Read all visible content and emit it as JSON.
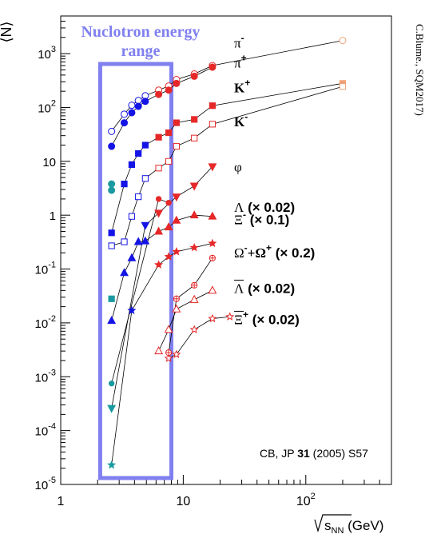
{
  "chart_data": {
    "type": "scatter",
    "x_scale": "log",
    "y_scale": "log",
    "xlim": [
      1,
      500
    ],
    "ylim": [
      1e-05,
      5000
    ],
    "grid": false,
    "ylabel": "⟨N⟩",
    "xlabel_symbol": "s",
    "xlabel_subscript": "NN",
    "xlabel_unit": "(GeV)",
    "x_tick_labels": [
      {
        "x": 1,
        "label": "1"
      },
      {
        "x": 10,
        "label": "10"
      },
      {
        "x": 100,
        "base": "10",
        "exp": "2"
      }
    ],
    "y_tick_labels": [
      {
        "y": 1e-05,
        "base": "10",
        "exp": "-5"
      },
      {
        "y": 0.0001,
        "base": "10",
        "exp": "-4"
      },
      {
        "y": 0.001,
        "base": "10",
        "exp": "-3"
      },
      {
        "y": 0.01,
        "base": "10",
        "exp": "-2"
      },
      {
        "y": 0.1,
        "base": "10",
        "exp": "-1"
      },
      {
        "y": 1,
        "label": "1"
      },
      {
        "y": 10,
        "label": "10"
      },
      {
        "y": 100,
        "base": "10",
        "exp": "2"
      },
      {
        "y": 1000,
        "base": "10",
        "exp": "3"
      }
    ],
    "band": {
      "x_from": 2.1,
      "x_to": 8.0,
      "label_line1": "Nuclotron energy",
      "label_line2": "range",
      "color": "#8080f0"
    },
    "credit_side": "C.Blume., SQM2017)",
    "credit_bottom": {
      "pre": "CB, JP ",
      "bold": "31",
      "post": " (2005) S57"
    },
    "series": [
      {
        "name": "π-",
        "marker": "circle",
        "filled": false,
        "line": true,
        "points": [
          {
            "x": 2.6,
            "y": 36,
            "c": "#1414e6"
          },
          {
            "x": 3.3,
            "y": 75,
            "c": "#1414e6"
          },
          {
            "x": 3.8,
            "y": 110,
            "c": "#1414e6"
          },
          {
            "x": 4.3,
            "y": 135,
            "c": "#1414e6"
          },
          {
            "x": 4.9,
            "y": 165,
            "c": "#1414e6"
          },
          {
            "x": 6.3,
            "y": 210,
            "c": "#e62828"
          },
          {
            "x": 7.6,
            "y": 250,
            "c": "#e62828"
          },
          {
            "x": 8.8,
            "y": 330,
            "c": "#e62828"
          },
          {
            "x": 12.3,
            "y": 420,
            "c": "#e62828"
          },
          {
            "x": 17.3,
            "y": 600,
            "c": "#e62828"
          },
          {
            "x": 200,
            "y": 1750,
            "c": "#f0a078"
          }
        ]
      },
      {
        "name": "π+",
        "marker": "circle",
        "filled": true,
        "line": true,
        "points": [
          {
            "x": 2.6,
            "y": 19,
            "c": "#1414e6"
          },
          {
            "x": 3.3,
            "y": 52,
            "c": "#1414e6"
          },
          {
            "x": 3.8,
            "y": 80,
            "c": "#1414e6"
          },
          {
            "x": 4.3,
            "y": 105,
            "c": "#1414e6"
          },
          {
            "x": 4.9,
            "y": 130,
            "c": "#1414e6"
          },
          {
            "x": 6.3,
            "y": 175,
            "c": "#e62828"
          },
          {
            "x": 7.6,
            "y": 210,
            "c": "#e62828"
          },
          {
            "x": 8.8,
            "y": 280,
            "c": "#e62828"
          },
          {
            "x": 12.3,
            "y": 380,
            "c": "#e62828"
          },
          {
            "x": 17.3,
            "y": 560,
            "c": "#e62828"
          }
        ]
      },
      {
        "name": "K+",
        "marker": "square",
        "filled": true,
        "line": true,
        "points": [
          {
            "x": 2.6,
            "y": 0.47,
            "c": "#1414e6"
          },
          {
            "x": 3.3,
            "y": 3.8,
            "c": "#1414e6"
          },
          {
            "x": 3.8,
            "y": 8.7,
            "c": "#1414e6"
          },
          {
            "x": 4.3,
            "y": 14,
            "c": "#1414e6"
          },
          {
            "x": 4.9,
            "y": 20,
            "c": "#1414e6"
          },
          {
            "x": 6.3,
            "y": 28,
            "c": "#e62828"
          },
          {
            "x": 7.6,
            "y": 34,
            "c": "#e62828"
          },
          {
            "x": 8.8,
            "y": 52,
            "c": "#e62828"
          },
          {
            "x": 12.3,
            "y": 60,
            "c": "#e62828"
          },
          {
            "x": 17.3,
            "y": 108,
            "c": "#e62828"
          },
          {
            "x": 200,
            "y": 280,
            "c": "#f0a078"
          }
        ]
      },
      {
        "name": "K-",
        "marker": "square",
        "filled": false,
        "line": true,
        "points": [
          {
            "x": 2.6,
            "y": 0.27,
            "c": "#1414e6"
          },
          {
            "x": 3.3,
            "y": 0.32,
            "c": "#1414e6"
          },
          {
            "x": 3.8,
            "y": 0.95,
            "c": "#1414e6"
          },
          {
            "x": 4.3,
            "y": 2.2,
            "c": "#1414e6"
          },
          {
            "x": 4.9,
            "y": 4.8,
            "c": "#1414e6"
          },
          {
            "x": 6.3,
            "y": 7.5,
            "c": "#e62828"
          },
          {
            "x": 7.6,
            "y": 10,
            "c": "#e62828"
          },
          {
            "x": 8.8,
            "y": 19,
            "c": "#e62828"
          },
          {
            "x": 12.3,
            "y": 27,
            "c": "#e62828"
          },
          {
            "x": 17.3,
            "y": 49,
            "c": "#e62828"
          },
          {
            "x": 200,
            "y": 245,
            "c": "#f0a078"
          }
        ]
      },
      {
        "name": "φ",
        "marker": "triangle-down",
        "filled": true,
        "line": true,
        "points": [
          {
            "x": 2.6,
            "y": 0.00026,
            "c": "#1a9aa0"
          },
          {
            "x": 4.9,
            "y": 0.65,
            "c": "#1414e6"
          },
          {
            "x": 6.3,
            "y": 1.1,
            "c": "#e62828"
          },
          {
            "x": 8.8,
            "y": 2.2,
            "c": "#e62828"
          },
          {
            "x": 12.3,
            "y": 3.5,
            "c": "#e62828"
          },
          {
            "x": 17.3,
            "y": 8.0,
            "c": "#e62828"
          }
        ]
      },
      {
        "name": "Λ (× 0.02)",
        "marker": "triangle-up",
        "filled": true,
        "line": true,
        "points": [
          {
            "x": 2.6,
            "y": 0.011,
            "c": "#1414e6"
          },
          {
            "x": 3.3,
            "y": 0.085,
            "c": "#1414e6"
          },
          {
            "x": 3.8,
            "y": 0.16,
            "c": "#1414e6"
          },
          {
            "x": 4.3,
            "y": 0.32,
            "c": "#1414e6"
          },
          {
            "x": 4.9,
            "y": 0.33,
            "c": "#1414e6"
          },
          {
            "x": 6.3,
            "y": 0.5,
            "c": "#e62828"
          },
          {
            "x": 7.6,
            "y": 0.6,
            "c": "#e62828"
          },
          {
            "x": 8.8,
            "y": 0.8,
            "c": "#e62828"
          },
          {
            "x": 12.3,
            "y": 1.0,
            "c": "#e62828"
          },
          {
            "x": 17.3,
            "y": 0.95,
            "c": "#e62828"
          }
        ]
      },
      {
        "name": "Ξ- (× 0.1)",
        "marker": "circle-small",
        "filled": true,
        "line": true,
        "points": [
          {
            "x": 2.6,
            "y": 0.00075,
            "c": "#1a9aa0"
          },
          {
            "x": 6.3,
            "y": 2.0,
            "c": "#e62828"
          },
          {
            "x": 7.6,
            "y": 1.7,
            "c": "#e62828"
          }
        ]
      },
      {
        "name": "Ω-+Ω+ (× 0.2)",
        "marker": "star",
        "filled": true,
        "line": true,
        "points": [
          {
            "x": 2.6,
            "y": 2.3e-05,
            "c": "#1a9aa0"
          },
          {
            "x": 3.8,
            "y": 0.017,
            "c": "#1414e6"
          },
          {
            "x": 6.3,
            "y": 0.12,
            "c": "#e62828"
          },
          {
            "x": 7.6,
            "y": 0.17,
            "c": "#e62828"
          },
          {
            "x": 8.8,
            "y": 0.21,
            "c": "#e62828"
          },
          {
            "x": 12.3,
            "y": 0.25,
            "c": "#e62828"
          },
          {
            "x": 17.3,
            "y": 0.3,
            "c": "#e62828"
          }
        ]
      },
      {
        "name": "Ξ+ (× 0.1)",
        "marker": "cross-open",
        "filled": false,
        "line": true,
        "points": [
          {
            "x": 7.6,
            "y": 0.0028,
            "c": "#e62828"
          },
          {
            "x": 8.8,
            "y": 0.028,
            "c": "#e62828"
          },
          {
            "x": 12.3,
            "y": 0.05,
            "c": "#e62828"
          },
          {
            "x": 17.3,
            "y": 0.16,
            "c": "#e62828"
          }
        ]
      },
      {
        "name": "Λ̄ (× 0.02)",
        "marker": "triangle-up",
        "filled": false,
        "line": true,
        "points": [
          {
            "x": 6.3,
            "y": 0.003,
            "c": "#e62828"
          },
          {
            "x": 7.6,
            "y": 0.0075,
            "c": "#e62828"
          },
          {
            "x": 8.8,
            "y": 0.018,
            "c": "#e62828"
          },
          {
            "x": 12.3,
            "y": 0.027,
            "c": "#e62828"
          },
          {
            "x": 17.3,
            "y": 0.04,
            "c": "#e62828"
          }
        ]
      },
      {
        "name": "Ξ̄+ (× 0.02)",
        "marker": "star-open",
        "filled": false,
        "line": true,
        "points": [
          {
            "x": 7.6,
            "y": 0.0022,
            "c": "#e62828"
          },
          {
            "x": 8.8,
            "y": 0.0026,
            "c": "#e62828"
          },
          {
            "x": 12.3,
            "y": 0.0075,
            "c": "#e62828"
          },
          {
            "x": 17.3,
            "y": 0.012,
            "c": "#e62828"
          },
          {
            "x": 24,
            "y": 0.013,
            "c": "#e62828"
          }
        ]
      },
      {
        "name": "teal",
        "marker": "circle",
        "filled": true,
        "line": false,
        "points": [
          {
            "x": 2.6,
            "y": 3.8,
            "c": "#1a9aa0"
          },
          {
            "x": 2.6,
            "y": 2.9,
            "c": "#1a9aa0"
          }
        ]
      },
      {
        "name": "teal-sq",
        "marker": "square",
        "filled": true,
        "line": false,
        "points": [
          {
            "x": 2.6,
            "y": 0.028,
            "c": "#1a9aa0"
          }
        ]
      }
    ],
    "labels": [
      {
        "id": "pim",
        "x": 26,
        "y": 1300,
        "base": "π",
        "sup": "-",
        "style": "serif"
      },
      {
        "id": "pip",
        "x": 26,
        "y": 550,
        "base": "π",
        "sup": "+",
        "style": "serif"
      },
      {
        "id": "kp",
        "x": 26,
        "y": 190,
        "base": "K",
        "sup": "+",
        "style": "bold"
      },
      {
        "id": "km",
        "x": 26,
        "y": 45,
        "base": "K",
        "sup": "-",
        "style": "bold"
      },
      {
        "id": "phi",
        "x": 26,
        "y": 6.5,
        "base": "φ",
        "sup": "",
        "style": "serif"
      },
      {
        "id": "lam",
        "x": 26,
        "y": 1.15,
        "base": "Λ",
        "sup": "",
        "tail": " (× 0.02)",
        "style": "mixed"
      },
      {
        "id": "xim",
        "x": 26,
        "y": 0.68,
        "base": "Ξ",
        "sup": "-",
        "tail": " (× 0.1)",
        "style": "mixed"
      },
      {
        "id": "omega",
        "x": 26,
        "y": 0.165,
        "base": "Ω",
        "sup": "-",
        "mid": "+Ω",
        "sup2": "+",
        "tail": " (× 0.2)",
        "style": "mixed"
      },
      {
        "id": "alam",
        "x": 26,
        "y": 0.036,
        "base": "Λ",
        "sup": "",
        "tail": " (× 0.02)",
        "style": "mixed",
        "bar": true
      },
      {
        "id": "axi",
        "x": 26,
        "y": 0.0095,
        "base": "Ξ",
        "sup": "+",
        "tail": " (× 0.02)",
        "style": "mixed",
        "bar": true
      }
    ]
  }
}
